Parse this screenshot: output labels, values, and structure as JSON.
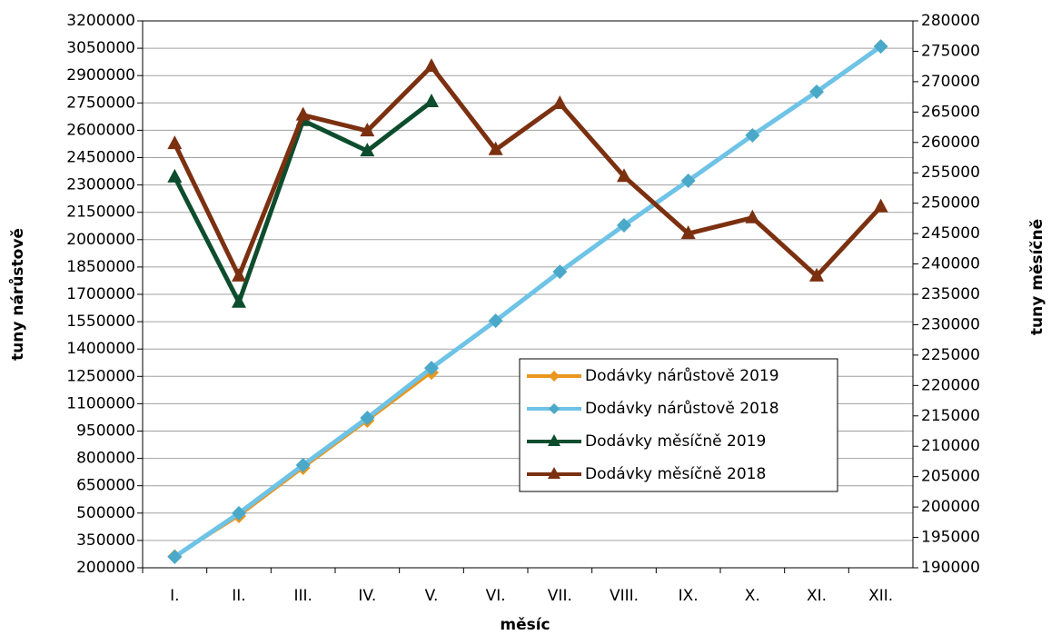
{
  "chart_data": {
    "type": "line",
    "x_label": "měsíc",
    "y_label": "tuny nárůstově",
    "y2_label": "tuny měsíčně",
    "categories": [
      "I.",
      "II.",
      "III.",
      "IV.",
      "V.",
      "VI.",
      "VII.",
      "VIII.",
      "IX.",
      "X.",
      "XI.",
      "XII."
    ],
    "ylim": [
      200000,
      3200000
    ],
    "yticks": [
      200000,
      350000,
      500000,
      650000,
      800000,
      950000,
      1100000,
      1250000,
      1400000,
      1550000,
      1700000,
      1850000,
      2000000,
      2150000,
      2300000,
      2450000,
      2600000,
      2750000,
      2900000,
      3050000,
      3200000
    ],
    "y2lim": [
      190000,
      280000
    ],
    "y2ticks": [
      190000,
      195000,
      200000,
      205000,
      210000,
      215000,
      220000,
      225000,
      230000,
      235000,
      240000,
      245000,
      250000,
      255000,
      260000,
      265000,
      270000,
      275000,
      280000
    ],
    "grid": true,
    "legend": "center-right",
    "series": [
      {
        "name": "Dodávky nárůstově 2019",
        "color": "#e8961e",
        "marker": "diamond",
        "axis": "y",
        "values": [
          262000,
          484000,
          748000,
          1007000,
          1271000,
          null,
          null,
          null,
          null,
          null,
          null,
          null
        ]
      },
      {
        "name": "Dodávky nárůstově 2018",
        "color": "#6ec3e6",
        "marker": "diamond",
        "axis": "y",
        "values": [
          260000,
          499000,
          763000,
          1022000,
          1296000,
          1555000,
          1824000,
          2079000,
          2323000,
          2572000,
          2811000,
          3060000
        ]
      },
      {
        "name": "Dodávky měsíčně 2019",
        "color": "#0d4d2e",
        "marker": "triangle",
        "axis": "y2",
        "values": [
          254300,
          233700,
          263600,
          258600,
          266700,
          null,
          null,
          null,
          null,
          null,
          null,
          null
        ]
      },
      {
        "name": "Dodávky měsíčně 2018",
        "color": "#7b3010",
        "marker": "triangle",
        "axis": "y2",
        "values": [
          259800,
          238000,
          264500,
          261900,
          272500,
          258800,
          266400,
          254400,
          245000,
          247600,
          238000,
          249400
        ]
      }
    ]
  }
}
